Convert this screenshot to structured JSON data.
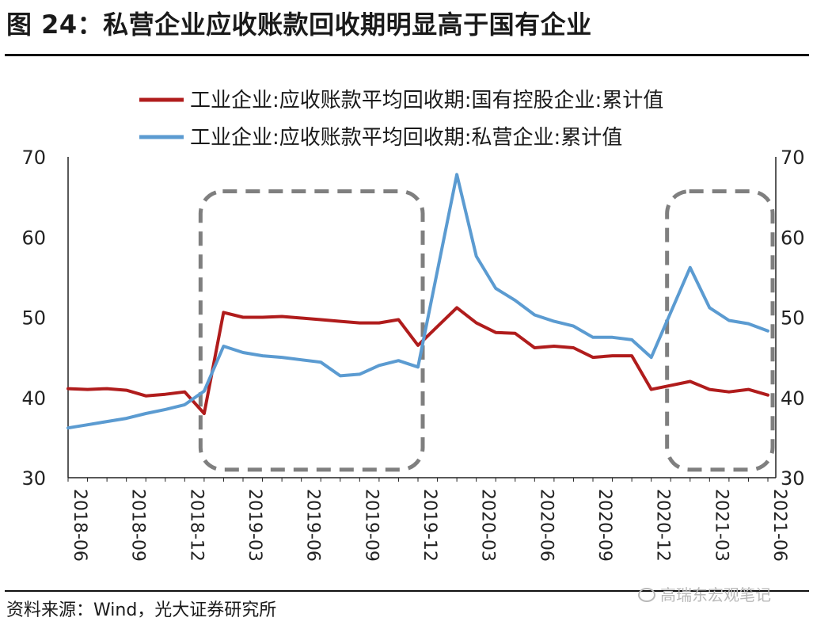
{
  "header": {
    "title": "图 24：私营企业应收账款回收期明显高于国有企业"
  },
  "footer": {
    "source": "资料来源：Wind，光大证券研究所",
    "watermark": "高瑞东宏观笔记"
  },
  "chart_data": {
    "type": "line",
    "title": "",
    "xlabel": "",
    "ylabel": "",
    "ylim": [
      30,
      70
    ],
    "yticks": [
      30,
      40,
      50,
      60,
      70
    ],
    "y2lim": [
      30,
      70
    ],
    "legend_position": "top",
    "x": [
      "2018-06",
      "2018-07",
      "2018-08",
      "2018-09",
      "2018-10",
      "2018-11",
      "2018-12",
      "2019-01",
      "2019-02",
      "2019-03",
      "2019-04",
      "2019-05",
      "2019-06",
      "2019-07",
      "2019-08",
      "2019-09",
      "2019-10",
      "2019-11",
      "2019-12",
      "2020-01",
      "2020-02",
      "2020-03",
      "2020-04",
      "2020-05",
      "2020-06",
      "2020-07",
      "2020-08",
      "2020-09",
      "2020-10",
      "2020-11",
      "2020-12",
      "2021-01",
      "2021-02",
      "2021-03",
      "2021-04",
      "2021-05",
      "2021-06"
    ],
    "xtick_labels": [
      "2018-06",
      "2018-09",
      "2018-12",
      "2019-03",
      "2019-06",
      "2019-09",
      "2019-12",
      "2020-03",
      "2020-06",
      "2020-09",
      "2020-12",
      "2021-03",
      "2021-06"
    ],
    "series": [
      {
        "name": "工业企业:应收账款平均回收期:国有控股企业:累计值",
        "color": "#b01c1c",
        "values": [
          41.1,
          41.0,
          41.1,
          40.9,
          40.2,
          40.4,
          40.7,
          38.0,
          50.6,
          50.0,
          50.0,
          50.1,
          49.9,
          49.7,
          49.5,
          49.3,
          49.3,
          49.7,
          46.5,
          null,
          51.2,
          49.3,
          48.1,
          48.0,
          46.2,
          46.4,
          46.2,
          45.0,
          45.2,
          45.2,
          41.0,
          41.5,
          42.0,
          41.0,
          40.7,
          41.0,
          40.3
        ]
      },
      {
        "name": "工业企业:应收账款平均回收期:私营企业:累计值",
        "color": "#5b9bd1",
        "values": [
          36.2,
          36.6,
          37.0,
          37.4,
          38.0,
          38.5,
          39.1,
          40.8,
          46.4,
          45.6,
          45.2,
          45.0,
          44.7,
          44.4,
          42.7,
          42.9,
          44.0,
          44.6,
          43.8,
          null,
          67.8,
          57.6,
          53.6,
          52.1,
          50.3,
          49.5,
          48.9,
          47.5,
          47.5,
          47.2,
          45.0,
          null,
          56.2,
          51.2,
          49.6,
          49.2,
          48.3
        ]
      }
    ],
    "annotations": [
      {
        "type": "dashed-rounded-box",
        "from": "2018-12",
        "to": "2019-12",
        "y_from": 31.0,
        "y_to": 65.7
      },
      {
        "type": "dashed-rounded-box",
        "from": "2020-12",
        "to": "2021-06",
        "y_from": 31.0,
        "y_to": 65.7
      }
    ]
  }
}
